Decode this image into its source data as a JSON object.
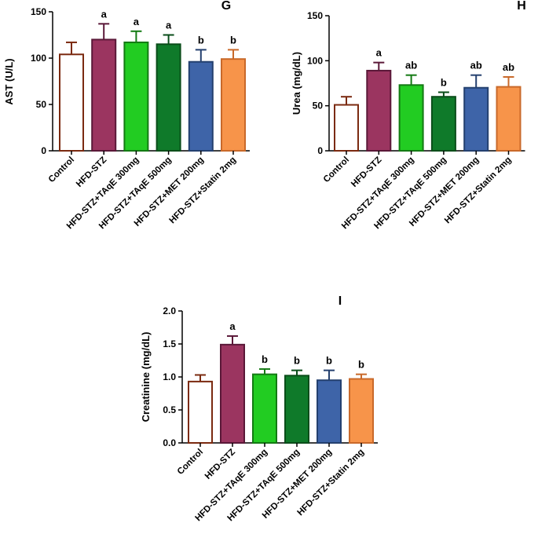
{
  "colors": {
    "Control": "#ffffff",
    "Control_edge": "#7b2a10",
    "HFD-STZ": "#9b3560",
    "HFD-STZ_edge": "#5a1838",
    "HFD-STZ+TAqE 300mg": "#22cc22",
    "HFD-STZ+TAqE 300mg_edge": "#137a13",
    "HFD-STZ+TAqE 500mg": "#0f7a2a",
    "HFD-STZ+TAqE 500mg_edge": "#0a4d1a",
    "HFD-STZ+MET 200mg": "#3e64a8",
    "HFD-STZ+MET 200mg_edge": "#24406f",
    "HFD-STZ+Statin 2mg": "#f7944a",
    "HFD-STZ+Statin 2mg_edge": "#c9692a"
  },
  "chart_data": [
    {
      "type": "bar",
      "panel": "G",
      "ylabel": "AST (U/L)",
      "ylim": [
        0,
        150
      ],
      "yticks": [
        "0",
        "50",
        "100",
        "150"
      ],
      "categories": [
        "Control",
        "HFD-STZ",
        "HFD-STZ+TAqE 300mg",
        "HFD-STZ+TAqE 500mg",
        "HFD-STZ+MET 200mg",
        "HFD-STZ+Statin 2mg"
      ],
      "values": [
        104,
        120,
        117,
        115,
        96,
        99
      ],
      "errors": [
        13,
        17,
        12,
        10,
        13,
        10
      ],
      "significance": [
        "",
        "a",
        "a",
        "a",
        "b",
        "b"
      ]
    },
    {
      "type": "bar",
      "panel": "H",
      "ylabel": "Urea (mg/dL)",
      "ylim": [
        0,
        150
      ],
      "yticks": [
        "0",
        "50",
        "100",
        "150"
      ],
      "categories": [
        "Control",
        "HFD-STZ",
        "HFD-STZ+TAqE 300mg",
        "HFD-STZ+TAqE 500mg",
        "HFD-STZ+MET 200mg",
        "HFD-STZ+Statin 2mg"
      ],
      "values": [
        51,
        89,
        73,
        60,
        70,
        71
      ],
      "errors": [
        9,
        9,
        11,
        5,
        14,
        11
      ],
      "significance": [
        "",
        "a",
        "ab",
        "b",
        "ab",
        "ab"
      ]
    },
    {
      "type": "bar",
      "panel": "I",
      "ylabel": "Creatinine (mg/dL)",
      "ylim": [
        0,
        2.0
      ],
      "yticks": [
        "0.0",
        "0.5",
        "1.0",
        "1.5",
        "2.0"
      ],
      "categories": [
        "Control",
        "HFD-STZ",
        "HFD-STZ+TAqE 300mg",
        "HFD-STZ+TAqE 500mg",
        "HFD-STZ+MET 200mg",
        "HFD-STZ+Statin 2mg"
      ],
      "values": [
        0.93,
        1.49,
        1.04,
        1.02,
        0.95,
        0.97
      ],
      "errors": [
        0.1,
        0.13,
        0.08,
        0.08,
        0.15,
        0.07
      ],
      "significance": [
        "",
        "a",
        "b",
        "b",
        "b",
        "b"
      ]
    }
  ]
}
